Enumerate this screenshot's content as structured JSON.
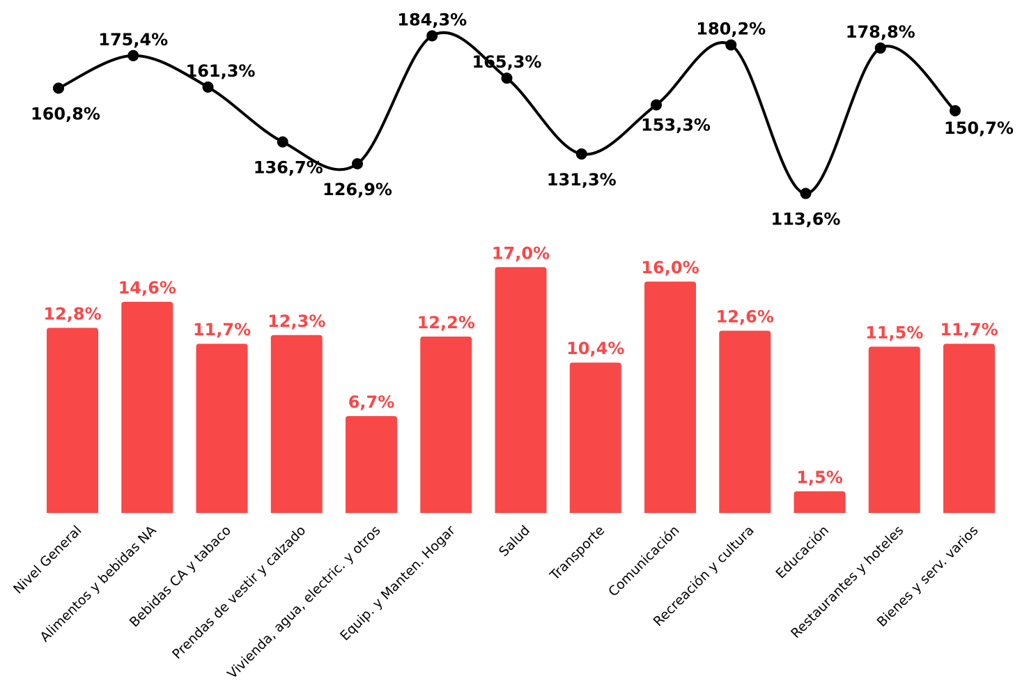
{
  "chart_data": [
    {
      "type": "line",
      "categories": [
        "Nivel General",
        "Alimentos y bebidas NA",
        "Bebidas CA y tabaco",
        "Prendas de vestir y calzado",
        "Vivienda, agua, electric. y otros",
        "Equip. y Manten. Hogar",
        "Salud",
        "Transporte",
        "Comunicación",
        "Recreación y cultura",
        "Educación",
        "Restaurantes y hoteles",
        "Bienes y serv. varios"
      ],
      "values": [
        160.8,
        175.4,
        161.3,
        136.7,
        126.9,
        184.3,
        165.3,
        131.3,
        153.3,
        180.2,
        113.6,
        178.8,
        150.7
      ],
      "labels": [
        "160,8%",
        "175,4%",
        "161,3%",
        "136,7%",
        "126,9%",
        "184,3%",
        "165,3%",
        "131,3%",
        "153,3%",
        "180,2%",
        "113,6%",
        "178,8%",
        "150,7%"
      ],
      "color": "#000000"
    },
    {
      "type": "bar",
      "categories": [
        "Nivel General",
        "Alimentos y bebidas NA",
        "Bebidas CA y tabaco",
        "Prendas de vestir y calzado",
        "Vivienda, agua, electric. y otros",
        "Equip. y Manten. Hogar",
        "Salud",
        "Transporte",
        "Comunicación",
        "Recreación y cultura",
        "Educación",
        "Restaurantes y hoteles",
        "Bienes y serv. varios"
      ],
      "values": [
        12.8,
        14.6,
        11.7,
        12.3,
        6.7,
        12.2,
        17.0,
        10.4,
        16.0,
        12.6,
        1.5,
        11.5,
        11.7
      ],
      "labels": [
        "12,8%",
        "14,6%",
        "11,7%",
        "12,3%",
        "6,7%",
        "12,2%",
        "17,0%",
        "10,4%",
        "16,0%",
        "12,6%",
        "1,5%",
        "11,5%",
        "11,7%"
      ],
      "color": "#f94848"
    }
  ]
}
